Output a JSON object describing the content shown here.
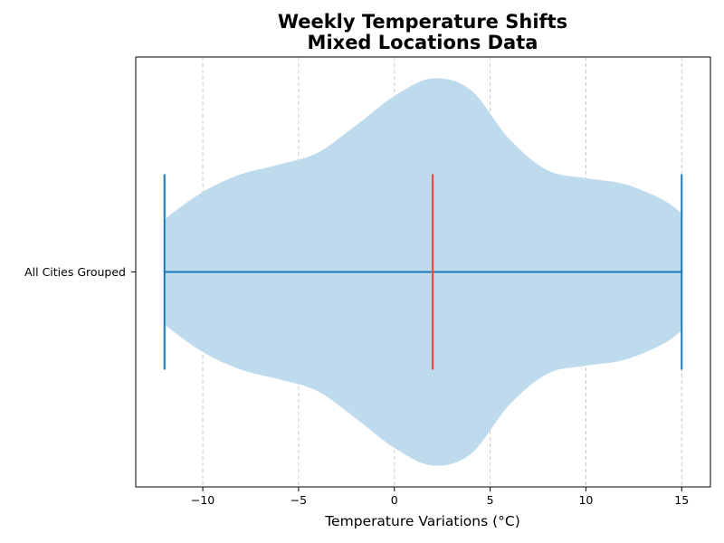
{
  "chart_data": {
    "type": "violin",
    "orientation": "horizontal",
    "title_lines": [
      "Weekly Temperature Shifts",
      "Mixed Locations Data"
    ],
    "xlabel": "Temperature Variations (°C)",
    "ylabel": "",
    "xlim": [
      -13.5,
      16.5
    ],
    "xticks": [
      -10,
      -5,
      0,
      5,
      10,
      15
    ],
    "xtick_labels": [
      "−10",
      "−5",
      "0",
      "5",
      "10",
      "15"
    ],
    "grid": {
      "x": true,
      "style": "dashed"
    },
    "categories": [
      "All Cities Grouped"
    ],
    "series": [
      {
        "min": -12,
        "max": 15,
        "median": 2,
        "density_profile": [
          [
            -12,
            0.27
          ],
          [
            -10,
            0.41
          ],
          [
            -8,
            0.5
          ],
          [
            -6,
            0.55
          ],
          [
            -4,
            0.61
          ],
          [
            -2,
            0.75
          ],
          [
            0,
            0.9
          ],
          [
            2,
            0.99
          ],
          [
            4,
            0.93
          ],
          [
            6,
            0.68
          ],
          [
            8,
            0.52
          ],
          [
            10,
            0.48
          ],
          [
            12,
            0.45
          ],
          [
            14,
            0.37
          ],
          [
            15,
            0.3
          ]
        ]
      }
    ],
    "colors": {
      "violin_fill": "#bedbee",
      "range_lines": "#1f77b4",
      "median_line": "#e8473b",
      "grid": "#c8c8c8"
    }
  }
}
